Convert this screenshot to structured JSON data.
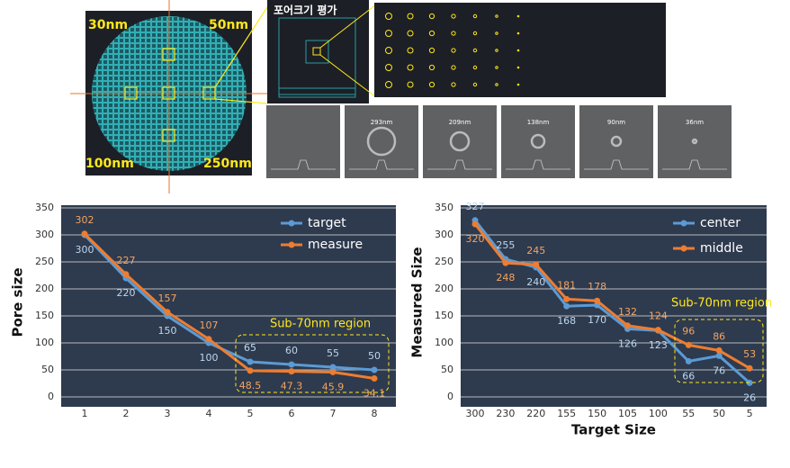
{
  "images": {
    "wafer_labels": [
      "30nm",
      "50nm",
      "100nm",
      "250nm"
    ],
    "zoom_title": "포어크기 평가",
    "sem_labels": [
      "293nm",
      "209nm",
      "138nm",
      "90nm",
      "36nm"
    ]
  },
  "chart_data": [
    {
      "type": "line",
      "y_label": "Pore size",
      "categories": [
        "1",
        "2",
        "3",
        "4",
        "5",
        "6",
        "7",
        "8"
      ],
      "series": [
        {
          "name": "target",
          "color": "#5b9bd5",
          "values": [
            300,
            220,
            150,
            100,
            65,
            60,
            55,
            50
          ]
        },
        {
          "name": "measure",
          "color": "#ed7d31",
          "values": [
            302,
            227,
            157,
            107,
            48.5,
            47.3,
            45.9,
            34.1
          ]
        }
      ],
      "ylim": [
        0,
        350
      ],
      "yticks": [
        0,
        50,
        100,
        150,
        200,
        250,
        300,
        350
      ],
      "grid": true,
      "legend": "top-right",
      "annotation": "Sub-70nm region"
    },
    {
      "type": "line",
      "x_label": "Target Size",
      "y_label": "Measured Size",
      "categories": [
        "300",
        "230",
        "220",
        "155",
        "150",
        "105",
        "100",
        "55",
        "50",
        "5"
      ],
      "series": [
        {
          "name": "center",
          "color": "#5b9bd5",
          "values": [
            327,
            255,
            240,
            168,
            170,
            126,
            123,
            66,
            76,
            26
          ]
        },
        {
          "name": "middle",
          "color": "#ed7d31",
          "values": [
            320,
            248,
            245,
            181,
            178,
            132,
            124,
            96,
            86,
            53
          ]
        }
      ],
      "ylim": [
        0,
        350
      ],
      "yticks": [
        0,
        50,
        100,
        150,
        200,
        250,
        300,
        350
      ],
      "grid": true,
      "legend": "top-right",
      "annotation": "Sub-70nm region"
    }
  ]
}
